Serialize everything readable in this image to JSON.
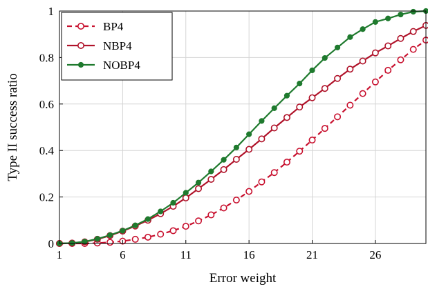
{
  "chart_data": {
    "type": "line",
    "xlabel": "Error weight",
    "ylabel": "Type II success ratio",
    "xlim": [
      1,
      30
    ],
    "ylim": [
      0,
      1
    ],
    "xticks": [
      1,
      6,
      11,
      16,
      21,
      26
    ],
    "yticks": [
      0,
      0.2,
      0.4,
      0.6,
      0.8,
      1
    ],
    "ytick_labels": [
      "0",
      "0.2",
      "0.4",
      "0.6",
      "0.8",
      "1"
    ],
    "grid": true,
    "legend_position": "top-left",
    "x": [
      1,
      2,
      3,
      4,
      5,
      6,
      7,
      8,
      9,
      10,
      11,
      12,
      13,
      14,
      15,
      16,
      17,
      18,
      19,
      20,
      21,
      22,
      23,
      24,
      25,
      26,
      27,
      28,
      29,
      30
    ],
    "series": [
      {
        "name": "BP4",
        "color": "#c8102e",
        "style": "dashed",
        "marker": "open-circle",
        "values": [
          0,
          0,
          0,
          0.002,
          0.005,
          0.01,
          0.018,
          0.027,
          0.04,
          0.055,
          0.074,
          0.097,
          0.123,
          0.153,
          0.187,
          0.224,
          0.265,
          0.305,
          0.35,
          0.397,
          0.445,
          0.495,
          0.545,
          0.595,
          0.645,
          0.695,
          0.745,
          0.79,
          0.835,
          0.875
        ]
      },
      {
        "name": "NBP4",
        "color": "#b0132a",
        "style": "solid",
        "marker": "open-circle",
        "values": [
          0,
          0.002,
          0.007,
          0.018,
          0.034,
          0.053,
          0.075,
          0.1,
          0.128,
          0.16,
          0.196,
          0.236,
          0.276,
          0.318,
          0.362,
          0.405,
          0.45,
          0.497,
          0.542,
          0.587,
          0.627,
          0.667,
          0.71,
          0.75,
          0.785,
          0.82,
          0.85,
          0.882,
          0.912,
          0.938
        ]
      },
      {
        "name": "NOBP4",
        "color": "#1f7a2e",
        "style": "solid",
        "marker": "filled-circle",
        "values": [
          0,
          0.002,
          0.008,
          0.02,
          0.036,
          0.055,
          0.078,
          0.105,
          0.138,
          0.175,
          0.218,
          0.262,
          0.31,
          0.36,
          0.413,
          0.47,
          0.527,
          0.582,
          0.636,
          0.688,
          0.745,
          0.798,
          0.843,
          0.888,
          0.922,
          0.953,
          0.968,
          0.985,
          0.997,
          1.0
        ]
      }
    ]
  }
}
